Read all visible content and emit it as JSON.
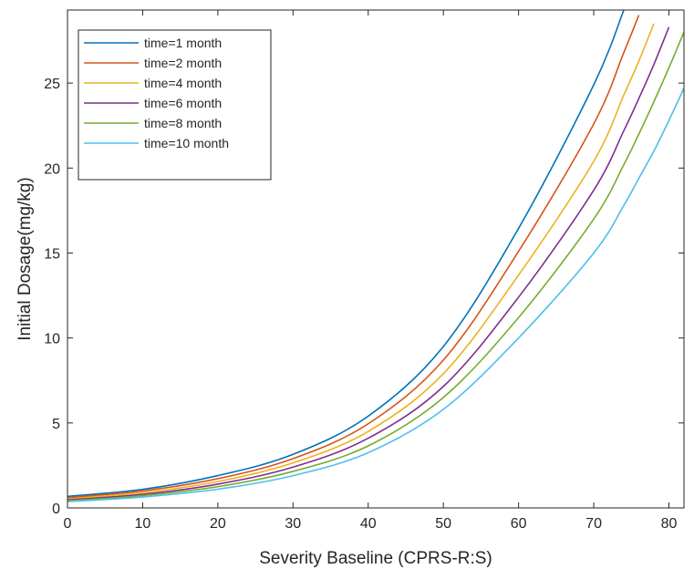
{
  "chart_data": {
    "type": "line",
    "title": "",
    "xlabel": "Severity Baseline (CPRS-R:S)",
    "ylabel": "Initial Dosage(mg/kg)",
    "xlim": [
      0,
      82
    ],
    "ylim": [
      0,
      29.3
    ],
    "xticks": [
      "0",
      "10",
      "20",
      "30",
      "40",
      "50",
      "60",
      "70",
      "80"
    ],
    "yticks": [
      "0",
      "5",
      "10",
      "15",
      "20",
      "25"
    ],
    "grid": false,
    "legend_position": "top-left",
    "x": [
      0,
      10,
      20,
      30,
      40,
      50,
      60,
      70,
      74,
      76,
      78,
      80,
      82
    ],
    "series": [
      {
        "name": "time=1 month",
        "color": "#0072BD",
        "values": [
          0.68,
          1.09,
          1.9,
          3.15,
          5.4,
          9.5,
          16.45,
          24.9,
          29.3,
          null,
          null,
          null,
          null
        ]
      },
      {
        "name": "time=2 month",
        "color": "#D95319",
        "values": [
          0.6,
          1.0,
          1.72,
          2.9,
          4.95,
          8.7,
          15.1,
          22.6,
          26.8,
          29.0,
          null,
          null,
          null
        ]
      },
      {
        "name": "time=4 month",
        "color": "#EDB120",
        "values": [
          0.53,
          0.9,
          1.55,
          2.65,
          4.5,
          7.9,
          13.7,
          20.4,
          24.3,
          26.3,
          28.5,
          null,
          null
        ]
      },
      {
        "name": "time=6 month",
        "color": "#7E2F8E",
        "values": [
          0.47,
          0.8,
          1.4,
          2.4,
          4.1,
          7.15,
          12.4,
          18.7,
          22.2,
          24.1,
          26.1,
          28.3,
          null
        ]
      },
      {
        "name": "time=8 month",
        "color": "#77AC30",
        "values": [
          0.42,
          0.72,
          1.25,
          2.15,
          3.65,
          6.5,
          11.2,
          17.0,
          20.2,
          22.0,
          23.9,
          25.9,
          28.0
        ]
      },
      {
        "name": "time=10 month",
        "color": "#4DBEEE",
        "values": [
          0.37,
          0.64,
          1.1,
          1.9,
          3.25,
          5.8,
          10.0,
          15.0,
          17.8,
          19.4,
          21.0,
          22.8,
          24.7
        ]
      }
    ]
  }
}
